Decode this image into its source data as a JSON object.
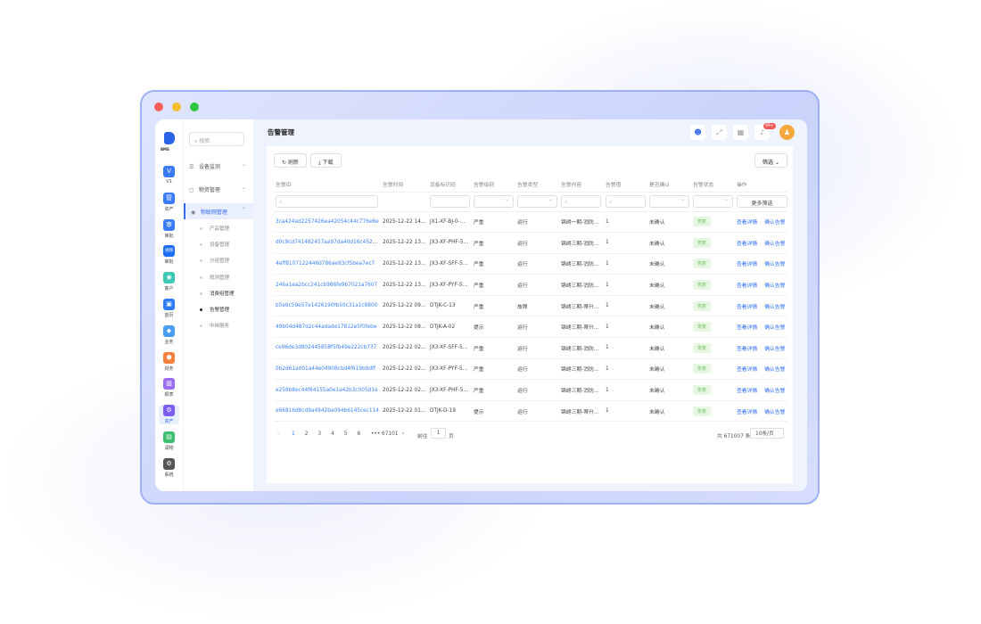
{
  "rail": {
    "logo": "BMS",
    "items": [
      {
        "icon": "V",
        "label": "V1",
        "color": "#3a7bf5"
      },
      {
        "icon": "管",
        "label": "资产",
        "color": "#3a7bf5"
      },
      {
        "icon": "审",
        "label": "审批",
        "color": "#3a7bf5"
      },
      {
        "icon": "视频",
        "label": "审批",
        "color": "#1f6ef0"
      },
      {
        "icon": "◉",
        "label": "客户",
        "color": "#3cc8b4"
      },
      {
        "icon": "▣",
        "label": "首页",
        "color": "#2d7cf5"
      },
      {
        "icon": "◆",
        "label": "业务",
        "color": "#4a9df0"
      },
      {
        "icon": "⬢",
        "label": "财务",
        "color": "#f5803e"
      },
      {
        "icon": "▥",
        "label": "报表",
        "color": "#9b6cf0"
      },
      {
        "icon": "⚙",
        "label": "资产",
        "color": "#7d5cf0",
        "active": true
      },
      {
        "icon": "▤",
        "label": "润物",
        "color": "#3cbf6e"
      },
      {
        "icon": "⚙",
        "label": "系统",
        "color": "#555555"
      }
    ]
  },
  "sidebar": {
    "search_placeholder": "搜索",
    "menus": [
      {
        "label": "设备监测",
        "icon": "☰"
      },
      {
        "label": "物资管理",
        "icon": "▢"
      },
      {
        "label": "物联网管理",
        "icon": "◉"
      }
    ],
    "submenu": [
      "产品管理",
      "设备管理",
      "分组管理",
      "规则管理",
      "消费组管理",
      "告警管理",
      "中继服务"
    ]
  },
  "header": {
    "title": "告警管理",
    "notification_badge": "99+",
    "avatar": "♟"
  },
  "toolbar": {
    "refresh": "刷新",
    "download": "下载",
    "filter": "筛选",
    "more_filter": "更多筛选"
  },
  "table": {
    "columns": [
      "告警ID",
      "告警时间",
      "设备标识码",
      "告警级别",
      "告警类型",
      "告警内容",
      "告警值",
      "是否确认",
      "告警状态",
      "操作"
    ],
    "actions": [
      "查看详情",
      "确认告警"
    ],
    "rows": [
      [
        "3ca424ad2257426ea42054c44c776e6e",
        "2025-12-22 14:…",
        "JX1-XF-BJ-0-…",
        "严重",
        "运行",
        "锦绣一期-消防…",
        "1",
        "未确认",
        "恢复"
      ],
      [
        "d0c9cd741482457aa97da40d16c45206",
        "2025-12-22 13:…",
        "JX3-XF-PHF-5…",
        "严重",
        "运行",
        "锦绣三期-消防…",
        "1",
        "未确认",
        "恢复"
      ],
      [
        "4eff8107122446d786ae93cf5bea7ec7",
        "2025-12-22 13:…",
        "JX3-XF-SFF-5…",
        "严重",
        "运行",
        "锦绣三期-消防…",
        "1",
        "未确认",
        "恢复"
      ],
      [
        "246a1ea2bcc241cb986fe9b7021a7607",
        "2025-12-22 13:…",
        "JX3-XF-PYF-5…",
        "严重",
        "运行",
        "锦绣三期-消防…",
        "1",
        "未确认",
        "恢复"
      ],
      [
        "b5e9c59e57e1426190fb50c31a1c8800",
        "2025-12-22 09:…",
        "DTJK-C-13",
        "严重",
        "故障",
        "锦绣三期-蒂升…",
        "1",
        "未确认",
        "恢复"
      ],
      [
        "49b04d487d2c44adade17812e5f0febe",
        "2025-12-22 08:…",
        "DTJK-A-02",
        "提示",
        "运行",
        "锦绣三期-蒂升…",
        "1",
        "未确认",
        "恢复"
      ],
      [
        "ce96de3d802445858f5fb49e222cb737",
        "2025-12-22 02:…",
        "JX3-XF-SFF-5…",
        "严重",
        "运行",
        "锦绣三期-消防…",
        "1",
        "未确认",
        "恢复"
      ],
      [
        "0b2d61ad01a44e04908cbd4f619b9dff",
        "2025-12-22 02:…",
        "JX3-XF-PYF-5…",
        "严重",
        "运行",
        "锦绣三期-消防…",
        "1",
        "未确认",
        "恢复"
      ],
      [
        "e258b8ec44f64155a0e1a42b3c005d1a",
        "2025-12-22 02:…",
        "JX3-XF-PHF-5…",
        "严重",
        "运行",
        "锦绣三期-消防…",
        "1",
        "未确认",
        "恢复"
      ],
      [
        "e66816d8cd9a4942ba094b6145cec114",
        "2025-12-22 01:…",
        "DTJK-D-19",
        "提示",
        "运行",
        "锦绣三期-蒂升…",
        "1",
        "未确认",
        "恢复"
      ]
    ]
  },
  "pagination": {
    "pages": [
      "1",
      "2",
      "3",
      "4",
      "5",
      "6"
    ],
    "ellipsis": "•••",
    "last": "67101",
    "goto_label": "前往",
    "goto_value": "1",
    "page_unit": "页",
    "total": "共 671007 条",
    "page_size": "10条/页",
    "current": "1"
  }
}
